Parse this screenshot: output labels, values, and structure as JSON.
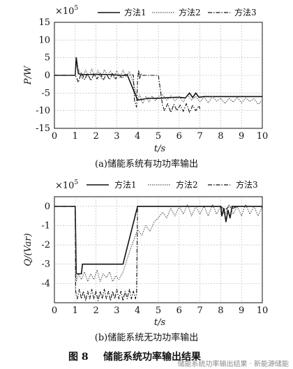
{
  "chart_data": [
    {
      "type": "line",
      "ylabel": "P/W",
      "xlabel": "t/s",
      "scale_label": "×10",
      "scale_exp": "5",
      "caption": "(a)储能系统有功功率输出",
      "xlim": [
        0,
        10
      ],
      "ylim": [
        -15,
        15
      ],
      "xticks": [
        "0",
        "1",
        "2",
        "3",
        "4",
        "5",
        "6",
        "7",
        "8",
        "9",
        "10"
      ],
      "yticks": [
        "15",
        "10",
        "5",
        "0",
        "-5",
        "-10",
        "-15"
      ],
      "series": [
        {
          "name": "方法1",
          "style": "solid",
          "color": "#111111",
          "points": [
            [
              0,
              0
            ],
            [
              0.9,
              0
            ],
            [
              1.0,
              0
            ],
            [
              1.05,
              5
            ],
            [
              1.15,
              0.5
            ],
            [
              1.3,
              0.2
            ],
            [
              2,
              0.3
            ],
            [
              2.8,
              0.2
            ],
            [
              3.2,
              0
            ],
            [
              3.4,
              0
            ],
            [
              3.5,
              0.2
            ],
            [
              4.0,
              -7
            ],
            [
              4.2,
              -6.8
            ],
            [
              4.5,
              -6.5
            ],
            [
              5.0,
              -6.5
            ],
            [
              5.5,
              -6.3
            ],
            [
              6.0,
              -6.2
            ],
            [
              6.3,
              -6.4
            ],
            [
              6.5,
              -5
            ],
            [
              6.65,
              -6.3
            ],
            [
              6.8,
              -5
            ],
            [
              6.95,
              -6.2
            ],
            [
              7.2,
              -6
            ],
            [
              8,
              -6
            ],
            [
              9,
              -6
            ],
            [
              10,
              -6
            ]
          ]
        },
        {
          "name": "方法2",
          "style": "dotted",
          "color": "#555555",
          "points": [
            [
              0,
              0
            ],
            [
              1.0,
              0
            ],
            [
              1.05,
              2.8
            ],
            [
              1.2,
              1.2
            ],
            [
              1.35,
              -1
            ],
            [
              1.5,
              1.5
            ],
            [
              1.65,
              -0.5
            ],
            [
              1.8,
              1.8
            ],
            [
              1.95,
              -0.3
            ],
            [
              2.1,
              1.4
            ],
            [
              2.25,
              -0.8
            ],
            [
              2.4,
              1.6
            ],
            [
              2.55,
              0
            ],
            [
              2.7,
              1.2
            ],
            [
              2.85,
              -0.5
            ],
            [
              3.0,
              1.3
            ],
            [
              3.15,
              -0.6
            ],
            [
              3.3,
              1.5
            ],
            [
              3.45,
              -0.4
            ],
            [
              3.6,
              1.0
            ],
            [
              3.8,
              -2
            ],
            [
              4.0,
              -7
            ],
            [
              4.1,
              -5.5
            ],
            [
              4.25,
              -8
            ],
            [
              4.4,
              -6
            ],
            [
              4.55,
              -7.5
            ],
            [
              4.7,
              -5.8
            ],
            [
              4.85,
              -7.2
            ],
            [
              5.0,
              -6
            ],
            [
              5.2,
              -5.5
            ],
            [
              5.4,
              -7
            ],
            [
              5.6,
              -5.8
            ],
            [
              5.8,
              -7.2
            ],
            [
              6.0,
              -6
            ],
            [
              6.2,
              -7.5
            ],
            [
              6.4,
              -5.5
            ],
            [
              6.6,
              -7
            ],
            [
              6.8,
              -6
            ],
            [
              7.0,
              -7.5
            ],
            [
              7.2,
              -6.2
            ],
            [
              7.4,
              -7.8
            ],
            [
              7.6,
              -6
            ],
            [
              7.8,
              -7.3
            ],
            [
              8.0,
              -6.5
            ],
            [
              8.2,
              -8
            ],
            [
              8.4,
              -6.5
            ],
            [
              8.6,
              -7.6
            ],
            [
              8.8,
              -6.2
            ],
            [
              9.0,
              -7.8
            ],
            [
              9.2,
              -6.4
            ],
            [
              9.4,
              -7.4
            ],
            [
              9.6,
              -6.6
            ],
            [
              9.8,
              -8.2
            ],
            [
              10,
              -7
            ]
          ]
        },
        {
          "name": "方法3",
          "style": "dashdot",
          "color": "#111111",
          "points": [
            [
              0,
              0
            ],
            [
              1.0,
              0
            ],
            [
              1.05,
              -0.5
            ],
            [
              1.15,
              -2
            ],
            [
              1.3,
              0.8
            ],
            [
              1.45,
              -1.2
            ],
            [
              1.6,
              0.5
            ],
            [
              1.75,
              -1.5
            ],
            [
              1.9,
              0.3
            ],
            [
              2.05,
              -1
            ],
            [
              2.2,
              0.6
            ],
            [
              2.35,
              -1.4
            ],
            [
              2.5,
              0.4
            ],
            [
              2.65,
              -1.2
            ],
            [
              2.8,
              0.5
            ],
            [
              2.95,
              -1
            ],
            [
              3.1,
              0.3
            ],
            [
              3.25,
              -0.8
            ],
            [
              3.4,
              0.2
            ],
            [
              3.6,
              0.1
            ],
            [
              3.8,
              0.1
            ],
            [
              3.85,
              -7
            ],
            [
              3.95,
              -9
            ],
            [
              4.0,
              -1.5
            ],
            [
              4.05,
              1.5
            ],
            [
              4.1,
              -1
            ],
            [
              4.15,
              0.5
            ],
            [
              4.2,
              0
            ],
            [
              4.5,
              0
            ],
            [
              5,
              0
            ],
            [
              5.2,
              -8.5
            ],
            [
              5.3,
              -10
            ],
            [
              5.45,
              -8
            ],
            [
              5.6,
              -10.5
            ],
            [
              5.75,
              -8.2
            ],
            [
              5.9,
              -10
            ],
            [
              6.05,
              -8.4
            ],
            [
              6.2,
              -10.2
            ],
            [
              6.35,
              -8
            ],
            [
              6.5,
              -10.5
            ],
            [
              6.65,
              -8.5
            ],
            [
              6.8,
              -10
            ],
            [
              6.95,
              -8.6
            ],
            [
              7.0,
              -9.5
            ]
          ]
        }
      ]
    },
    {
      "type": "line",
      "ylabel": "Q/(Var)",
      "xlabel": "t/s",
      "scale_label": "×10",
      "scale_exp": "5",
      "caption": "(b)储能系统无功功率输出",
      "xlim": [
        0,
        10
      ],
      "ylim": [
        -5,
        0.5
      ],
      "xticks": [
        "0",
        "1",
        "2",
        "3",
        "4",
        "5",
        "6",
        "7",
        "8",
        "9",
        "10"
      ],
      "yticks": [
        "0",
        "-1",
        "-2",
        "-3",
        "-4"
      ],
      "series": [
        {
          "name": "方法1",
          "style": "solid",
          "color": "#111111",
          "points": [
            [
              0,
              0
            ],
            [
              1.0,
              0
            ],
            [
              1.05,
              -3.5
            ],
            [
              1.3,
              -3.5
            ],
            [
              1.35,
              -3.0
            ],
            [
              2.0,
              -3.0
            ],
            [
              3.0,
              -3.0
            ],
            [
              3.3,
              -3.0
            ],
            [
              4.0,
              0
            ],
            [
              5,
              0
            ],
            [
              6,
              0
            ],
            [
              6.5,
              0
            ],
            [
              7,
              0
            ],
            [
              7.5,
              0
            ],
            [
              8.0,
              0
            ],
            [
              8.05,
              -0.5
            ],
            [
              8.15,
              -0.1
            ],
            [
              8.25,
              -0.8
            ],
            [
              8.35,
              -0.2
            ],
            [
              8.45,
              -0.6
            ],
            [
              8.55,
              0
            ],
            [
              10,
              0
            ]
          ]
        },
        {
          "name": "方法2",
          "style": "dotted",
          "color": "#555555",
          "points": [
            [
              0,
              0
            ],
            [
              1.0,
              0
            ],
            [
              1.05,
              -3.9
            ],
            [
              1.15,
              -3.5
            ],
            [
              1.3,
              -3.8
            ],
            [
              1.45,
              -3.4
            ],
            [
              1.6,
              -3.9
            ],
            [
              1.75,
              -3.5
            ],
            [
              1.9,
              -3.8
            ],
            [
              2.05,
              -3.3
            ],
            [
              2.2,
              -3.9
            ],
            [
              2.35,
              -3.5
            ],
            [
              2.5,
              -3.7
            ],
            [
              2.65,
              -3.4
            ],
            [
              2.8,
              -3.9
            ],
            [
              2.95,
              -3.6
            ],
            [
              3.1,
              -3.8
            ],
            [
              3.3,
              -3.4
            ],
            [
              3.6,
              -2.4
            ],
            [
              3.8,
              -1.8
            ],
            [
              4.0,
              -1.2
            ],
            [
              4.2,
              -1.5
            ],
            [
              4.4,
              -1.0
            ],
            [
              4.6,
              -1.3
            ],
            [
              4.8,
              -0.8
            ],
            [
              5.0,
              -0.6
            ],
            [
              5.2,
              -0.3
            ],
            [
              5.4,
              -0.6
            ],
            [
              5.6,
              -0.1
            ],
            [
              5.8,
              -0.5
            ],
            [
              6.0,
              0
            ],
            [
              6.2,
              -0.4
            ],
            [
              6.4,
              0.1
            ],
            [
              6.6,
              -0.5
            ],
            [
              6.8,
              0
            ],
            [
              7.0,
              -0.4
            ],
            [
              7.2,
              0
            ],
            [
              7.4,
              -0.5
            ],
            [
              7.6,
              0.1
            ],
            [
              7.8,
              -0.4
            ],
            [
              8.0,
              0
            ],
            [
              8.2,
              -0.5
            ],
            [
              8.4,
              0.1
            ],
            [
              8.6,
              -0.4
            ],
            [
              8.8,
              0
            ],
            [
              9.0,
              -0.5
            ],
            [
              9.2,
              0.1
            ],
            [
              9.4,
              -0.4
            ],
            [
              9.6,
              0
            ],
            [
              9.8,
              -0.5
            ],
            [
              10,
              0
            ]
          ]
        },
        {
          "name": "方法3",
          "style": "dashdot",
          "color": "#111111",
          "points": [
            [
              0,
              0
            ],
            [
              1.0,
              0
            ],
            [
              1.02,
              -4.4
            ],
            [
              1.1,
              -4.8
            ],
            [
              1.2,
              -4.3
            ],
            [
              1.3,
              -4.8
            ],
            [
              1.4,
              -4.4
            ],
            [
              1.5,
              -4.9
            ],
            [
              1.6,
              -4.4
            ],
            [
              1.7,
              -4.8
            ],
            [
              1.8,
              -4.3
            ],
            [
              1.9,
              -4.8
            ],
            [
              2.0,
              -4.4
            ],
            [
              2.1,
              -4.9
            ],
            [
              2.2,
              -4.4
            ],
            [
              2.3,
              -4.8
            ],
            [
              2.4,
              -4.3
            ],
            [
              2.5,
              -4.8
            ],
            [
              2.6,
              -4.4
            ],
            [
              2.7,
              -4.9
            ],
            [
              2.8,
              -4.4
            ],
            [
              2.9,
              -4.8
            ],
            [
              3.0,
              -4.3
            ],
            [
              3.1,
              -4.8
            ],
            [
              3.2,
              -4.4
            ],
            [
              3.3,
              -4.9
            ],
            [
              3.4,
              -4.4
            ],
            [
              3.5,
              -4.8
            ],
            [
              3.6,
              -4.3
            ],
            [
              3.7,
              -4.8
            ],
            [
              3.8,
              -4.4
            ],
            [
              3.9,
              -4.8
            ],
            [
              3.95,
              -4.5
            ],
            [
              4.0,
              0
            ],
            [
              5,
              0
            ],
            [
              6,
              0
            ],
            [
              7,
              0
            ],
            [
              8,
              0
            ],
            [
              8.2,
              -0.2
            ],
            [
              8.4,
              0
            ],
            [
              8.6,
              -0.1
            ],
            [
              8.8,
              0
            ],
            [
              10,
              0
            ]
          ]
        }
      ]
    }
  ],
  "figure": {
    "caption_label": "图 8",
    "caption_text": "储能系统功率输出结果",
    "watermark": "储能系统功率输出结果 · 新能源储能"
  }
}
